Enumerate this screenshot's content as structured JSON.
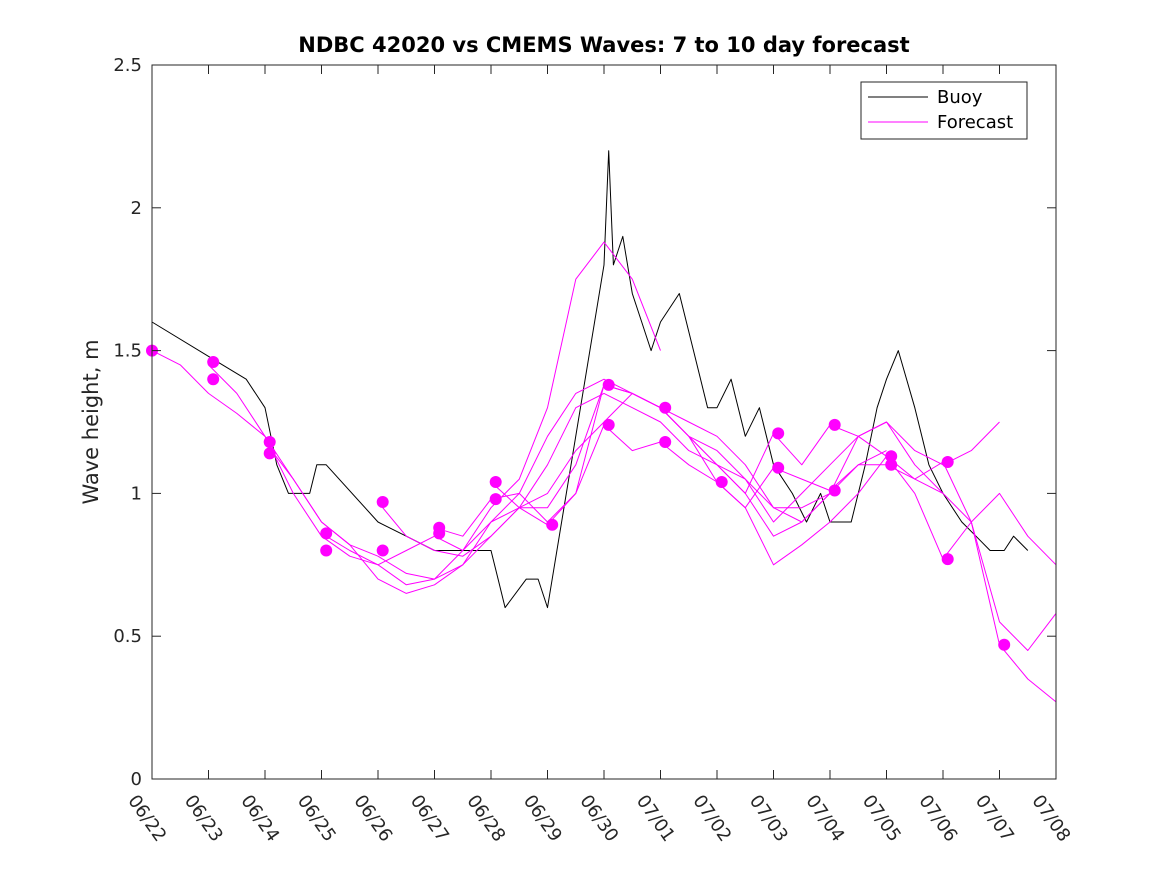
{
  "chart_data": {
    "type": "line",
    "title": "NDBC 42020 vs CMEMS Waves: 7 to 10 day forecast",
    "xlabel": "",
    "ylabel": "Wave height, m",
    "xlim": [
      "06/22",
      "07/08"
    ],
    "ylim": [
      0,
      2.5
    ],
    "grid": false,
    "legend_position": "top-right",
    "x_ticks": [
      "06/22",
      "06/23",
      "06/24",
      "06/25",
      "06/26",
      "06/27",
      "06/28",
      "06/29",
      "06/30",
      "07/01",
      "07/02",
      "07/03",
      "07/04",
      "07/05",
      "07/06",
      "07/07",
      "07/08"
    ],
    "y_ticks": [
      "0",
      "0.5",
      "1",
      "1.5",
      "2",
      "2.5"
    ],
    "y_tick_values": [
      0,
      0.5,
      1,
      1.5,
      2,
      2.5
    ],
    "colors": {
      "buoy": "#000000",
      "forecast": "#ff00ff"
    },
    "series": [
      {
        "name": "Buoy",
        "x": [
          "06/22 00:00",
          "06/23 06:00",
          "06/23 16:00",
          "06/24 00:00",
          "06/24 05:00",
          "06/24 10:00",
          "06/24 19:00",
          "06/24 22:00",
          "06/25 02:00",
          "06/26 00:00",
          "06/26 12:00",
          "06/27 00:00",
          "06/28 00:00",
          "06/28 03:00",
          "06/28 06:00",
          "06/28 15:00",
          "06/28 20:00",
          "06/29 00:00",
          "06/30 00:00",
          "06/30 02:00",
          "06/30 04:00",
          "06/30 08:00",
          "06/30 12:00",
          "06/30 16:00",
          "06/30 20:00",
          "07/01 00:00",
          "07/01 08:00",
          "07/01 14:00",
          "07/01 20:00",
          "07/02 00:00",
          "07/02 06:00",
          "07/02 12:00",
          "07/02 18:00",
          "07/03 00:00",
          "07/03 08:00",
          "07/03 14:00",
          "07/03 20:00",
          "07/04 00:00",
          "07/04 09:00",
          "07/04 15:00",
          "07/04 20:00",
          "07/05 00:00",
          "07/05 05:00",
          "07/05 12:00",
          "07/05 18:00",
          "07/06 00:00",
          "07/06 08:00",
          "07/06 14:00",
          "07/06 20:00",
          "07/07 02:00",
          "07/07 06:00",
          "07/07 12:00"
        ],
        "y": [
          1.6,
          1.45,
          1.4,
          1.3,
          1.1,
          1.0,
          1.0,
          1.1,
          1.1,
          0.9,
          0.85,
          0.8,
          0.8,
          0.7,
          0.6,
          0.7,
          0.7,
          0.6,
          1.8,
          2.2,
          1.8,
          1.9,
          1.7,
          1.6,
          1.5,
          1.6,
          1.7,
          1.5,
          1.3,
          1.3,
          1.4,
          1.2,
          1.3,
          1.1,
          1.0,
          0.9,
          1.0,
          0.9,
          0.9,
          1.1,
          1.3,
          1.4,
          1.5,
          1.3,
          1.1,
          1.0,
          0.9,
          0.85,
          0.8,
          0.8,
          0.85,
          0.8
        ]
      },
      {
        "name": "Forecast",
        "x": [
          "06/22 00:00",
          "06/22 12:00",
          "06/23 00:00",
          "06/23 12:00",
          "06/24 00:00",
          "06/24 12:00",
          "06/25 00:00",
          "06/25 12:00",
          "06/26 00:00",
          "06/26 12:00",
          "06/27 00:00",
          "06/27 12:00",
          "06/28 00:00",
          "06/28 12:00",
          "06/29 00:00",
          "06/29 12:00",
          "06/30 00:00",
          "06/30 12:00",
          "07/01 00:00"
        ],
        "y": [
          1.5,
          1.45,
          1.35,
          1.28,
          1.2,
          1.0,
          0.85,
          0.78,
          0.75,
          0.8,
          0.85,
          0.8,
          0.95,
          1.05,
          1.3,
          1.75,
          1.88,
          1.75,
          1.5
        ]
      },
      {
        "name": "Forecast",
        "x": [
          "06/23 00:00",
          "06/23 12:00",
          "06/24 00:00",
          "06/24 12:00",
          "06/25 00:00",
          "06/25 12:00",
          "06/26 00:00",
          "06/26 12:00",
          "06/27 00:00",
          "06/27 12:00",
          "06/28 00:00",
          "06/28 12:00",
          "06/29 00:00",
          "06/29 12:00",
          "06/30 00:00",
          "06/30 12:00",
          "07/01 00:00",
          "07/01 12:00",
          "07/02 00:00",
          "07/02 12:00",
          "07/03 00:00",
          "07/03 12:00",
          "07/04 00:00"
        ],
        "y": [
          1.45,
          1.35,
          1.2,
          1.05,
          0.9,
          0.82,
          0.78,
          0.72,
          0.7,
          0.75,
          0.9,
          1.0,
          1.2,
          1.35,
          1.4,
          1.35,
          1.3,
          1.2,
          1.1,
          1.05,
          0.95,
          0.95,
          1.0
        ]
      },
      {
        "name": "Forecast",
        "x": [
          "06/24 00:00",
          "06/24 12:00",
          "06/25 00:00",
          "06/25 12:00",
          "06/26 00:00",
          "06/26 12:00",
          "06/27 00:00",
          "06/27 12:00",
          "06/28 00:00",
          "06/28 12:00",
          "06/29 00:00",
          "06/29 12:00",
          "06/30 00:00",
          "06/30 12:00",
          "07/01 00:00",
          "07/01 12:00",
          "07/02 00:00",
          "07/02 12:00",
          "07/03 00:00",
          "07/03 12:00",
          "07/04 00:00",
          "07/04 12:00",
          "07/05 00:00"
        ],
        "y": [
          1.18,
          1.05,
          0.9,
          0.82,
          0.7,
          0.65,
          0.68,
          0.75,
          0.85,
          0.95,
          1.1,
          1.3,
          1.35,
          1.3,
          1.25,
          1.15,
          1.1,
          1.0,
          0.85,
          0.9,
          1.0,
          1.1,
          1.15
        ]
      },
      {
        "name": "Forecast",
        "x": [
          "06/25 00:00",
          "06/25 12:00",
          "06/26 00:00",
          "06/26 12:00",
          "06/27 00:00",
          "06/27 12:00",
          "06/28 00:00",
          "06/28 12:00",
          "06/29 00:00",
          "06/29 12:00",
          "06/30 00:00",
          "06/30 12:00",
          "07/01 00:00",
          "07/01 12:00",
          "07/02 00:00",
          "07/02 12:00",
          "07/03 00:00",
          "07/03 12:00",
          "07/04 00:00",
          "07/04 12:00",
          "07/05 00:00",
          "07/05 12:00",
          "07/06 00:00"
        ],
        "y": [
          0.86,
          0.8,
          0.75,
          0.68,
          0.7,
          0.8,
          0.9,
          0.95,
          1.0,
          1.15,
          1.25,
          1.35,
          1.3,
          1.25,
          1.2,
          1.1,
          0.95,
          0.9,
          1.0,
          1.2,
          1.25,
          1.1,
          1.0
        ]
      },
      {
        "name": "Forecast",
        "x": [
          "06/26 00:00",
          "06/26 12:00",
          "06/27 00:00",
          "06/27 12:00",
          "06/28 00:00",
          "06/28 12:00",
          "06/29 00:00",
          "06/29 12:00",
          "06/30 00:00",
          "06/30 12:00",
          "07/01 00:00",
          "07/01 12:00",
          "07/02 00:00",
          "07/02 12:00",
          "07/03 00:00",
          "07/03 12:00",
          "07/04 00:00",
          "07/04 12:00",
          "07/05 00:00",
          "07/05 12:00",
          "07/06 00:00",
          "07/06 12:00",
          "07/07 00:00"
        ],
        "y": [
          0.97,
          0.85,
          0.8,
          0.78,
          0.85,
          0.95,
          0.95,
          1.1,
          1.38,
          1.35,
          1.3,
          1.2,
          1.15,
          1.05,
          0.9,
          1.0,
          1.1,
          1.2,
          1.25,
          1.15,
          1.1,
          1.15,
          1.25
        ]
      },
      {
        "name": "Forecast",
        "x": [
          "06/27 00:00",
          "06/27 12:00",
          "06/28 00:00",
          "06/28 12:00",
          "06/29 00:00",
          "06/29 12:00",
          "06/30 00:00",
          "06/30 12:00",
          "07/01 00:00",
          "07/01 12:00",
          "07/02 00:00",
          "07/02 12:00",
          "07/03 00:00",
          "07/03 12:00",
          "07/04 00:00",
          "07/04 12:00",
          "07/05 00:00",
          "07/05 12:00",
          "07/06 00:00",
          "07/06 12:00",
          "07/07 00:00",
          "07/07 12:00",
          "07/08 00:00"
        ],
        "y": [
          0.88,
          0.85,
          0.98,
          1.0,
          0.9,
          1.0,
          1.24,
          1.15,
          1.18,
          1.1,
          1.04,
          0.95,
          0.75,
          0.82,
          0.9,
          1.0,
          1.13,
          1.05,
          1.0,
          0.9,
          0.55,
          0.45,
          0.58
        ]
      },
      {
        "name": "Forecast",
        "x": [
          "06/28 00:00",
          "06/28 12:00",
          "06/29 00:00",
          "06/29 12:00",
          "06/30 00:00",
          "06/30 12:00",
          "07/01 00:00",
          "07/01 12:00",
          "07/02 00:00",
          "07/02 12:00",
          "07/03 00:00",
          "07/03 12:00",
          "07/04 00:00",
          "07/04 12:00",
          "07/05 00:00",
          "07/05 12:00",
          "07/06 00:00",
          "07/06 12:00",
          "07/07 00:00",
          "07/07 12:00",
          "07/08 00:00"
        ],
        "y": [
          1.04,
          0.95,
          0.89,
          1.0,
          1.38,
          1.35,
          1.3,
          1.2,
          1.04,
          0.95,
          1.09,
          1.05,
          1.01,
          1.1,
          1.1,
          1.05,
          1.11,
          0.9,
          0.47,
          0.35,
          0.27
        ]
      },
      {
        "name": "Forecast",
        "x": [
          "07/01 00:00",
          "07/01 12:00",
          "07/02 00:00",
          "07/02 12:00",
          "07/03 00:00",
          "07/03 12:00",
          "07/04 00:00",
          "07/04 12:00",
          "07/05 00:00",
          "07/05 12:00",
          "07/06 00:00",
          "07/06 12:00",
          "07/07 00:00",
          "07/07 12:00",
          "07/08 00:00"
        ],
        "y": [
          1.3,
          1.2,
          1.1,
          1.0,
          1.21,
          1.1,
          1.24,
          1.2,
          1.13,
          1.0,
          0.77,
          0.9,
          1.0,
          0.85,
          0.75
        ]
      }
    ],
    "markers": {
      "series": "Forecast",
      "x": [
        "06/22 00:00",
        "06/23 02:00",
        "06/23 02:00",
        "06/24 02:00",
        "06/24 02:00",
        "06/25 02:00",
        "06/25 02:00",
        "06/26 02:00",
        "06/26 02:00",
        "06/27 02:00",
        "06/27 02:00",
        "06/28 02:00",
        "06/28 02:00",
        "06/29 02:00",
        "06/30 02:00",
        "06/30 02:00",
        "07/01 02:00",
        "07/01 02:00",
        "07/02 02:00",
        "07/03 02:00",
        "07/03 02:00",
        "07/04 02:00",
        "07/04 02:00",
        "07/05 02:00",
        "07/05 02:00",
        "07/06 02:00",
        "07/06 02:00",
        "07/07 02:00"
      ],
      "y": [
        1.5,
        1.46,
        1.4,
        1.18,
        1.14,
        0.86,
        0.8,
        0.97,
        0.8,
        0.88,
        0.86,
        1.04,
        0.98,
        0.89,
        1.38,
        1.24,
        1.3,
        1.18,
        1.04,
        1.21,
        1.09,
        1.24,
        1.01,
        1.13,
        1.1,
        1.11,
        0.77,
        0.47
      ]
    }
  },
  "legend": {
    "items": [
      {
        "label": "Buoy",
        "color": "#000000"
      },
      {
        "label": "Forecast",
        "color": "#ff00ff"
      }
    ]
  }
}
